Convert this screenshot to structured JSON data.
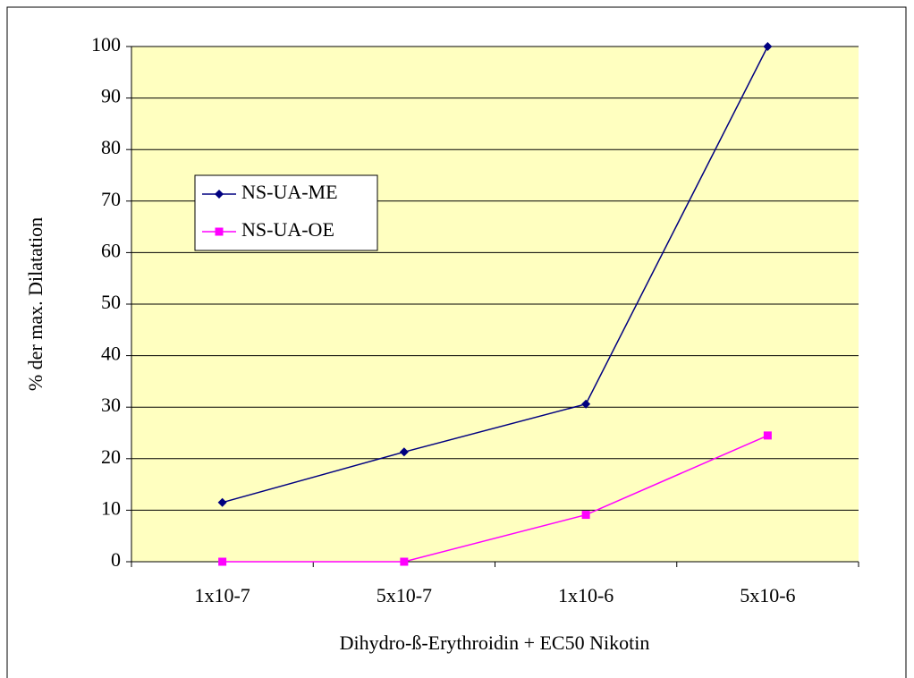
{
  "chart_data": {
    "type": "line",
    "x_label": "Dihydro-ß-Erythroidin + EC50 Nikotin",
    "y_label": "% der max. Dilatation",
    "categories": [
      "1x10-7",
      "5x10-7",
      "1x10-6",
      "5x10-6"
    ],
    "series": [
      {
        "name": "NS-UA-ME",
        "color": "#000080",
        "marker": "diamond",
        "values": [
          11.5,
          21.3,
          30.6,
          100
        ]
      },
      {
        "name": "NS-UA-OE",
        "color": "#ff00ff",
        "marker": "square",
        "values": [
          0,
          0,
          9.1,
          24.5
        ]
      }
    ],
    "ylim": [
      0,
      100
    ],
    "yticks": [
      0,
      10,
      20,
      30,
      40,
      50,
      60,
      70,
      80,
      90,
      100
    ],
    "grid": true,
    "legend": "upper left",
    "plot_background": "#ffffc0"
  }
}
